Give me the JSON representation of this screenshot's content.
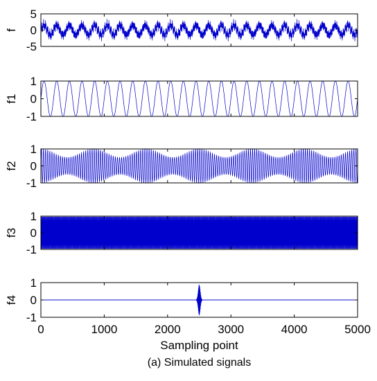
{
  "chart_data": {
    "type": "line",
    "caption": "(a) Simulated signals",
    "xlabel": "Sampling point",
    "xlim": [
      0,
      5000
    ],
    "xticks": [
      "0",
      "1000",
      "2000",
      "3000",
      "4000",
      "5000"
    ],
    "line_color": "#0000cc",
    "panels": [
      {
        "ylabel": "f",
        "ylim": [
          -5,
          5
        ],
        "yticks": [
          "5",
          "0",
          "-5"
        ],
        "signal": "composite",
        "amplitude": 3.0
      },
      {
        "ylabel": "f1",
        "ylim": [
          -1,
          1
        ],
        "yticks": [
          "1",
          "0",
          "-1"
        ],
        "signal": "sine",
        "cycles": 25,
        "amplitude": 1.0
      },
      {
        "ylabel": "f2",
        "ylim": [
          -1,
          1
        ],
        "yticks": [
          "1",
          "0",
          "-1"
        ],
        "signal": "modulated",
        "cycles": 150,
        "amplitude": 1.0
      },
      {
        "ylabel": "f3",
        "ylim": [
          -1,
          1
        ],
        "yticks": [
          "1",
          "0",
          "-1"
        ],
        "signal": "sine",
        "cycles": 500,
        "amplitude": 1.0
      },
      {
        "ylabel": "f4",
        "ylim": [
          -1,
          1
        ],
        "yticks": [
          "1",
          "0",
          "-1"
        ],
        "signal": "pulse",
        "center": 2500,
        "width": 40,
        "amplitude": 1.0
      }
    ]
  }
}
